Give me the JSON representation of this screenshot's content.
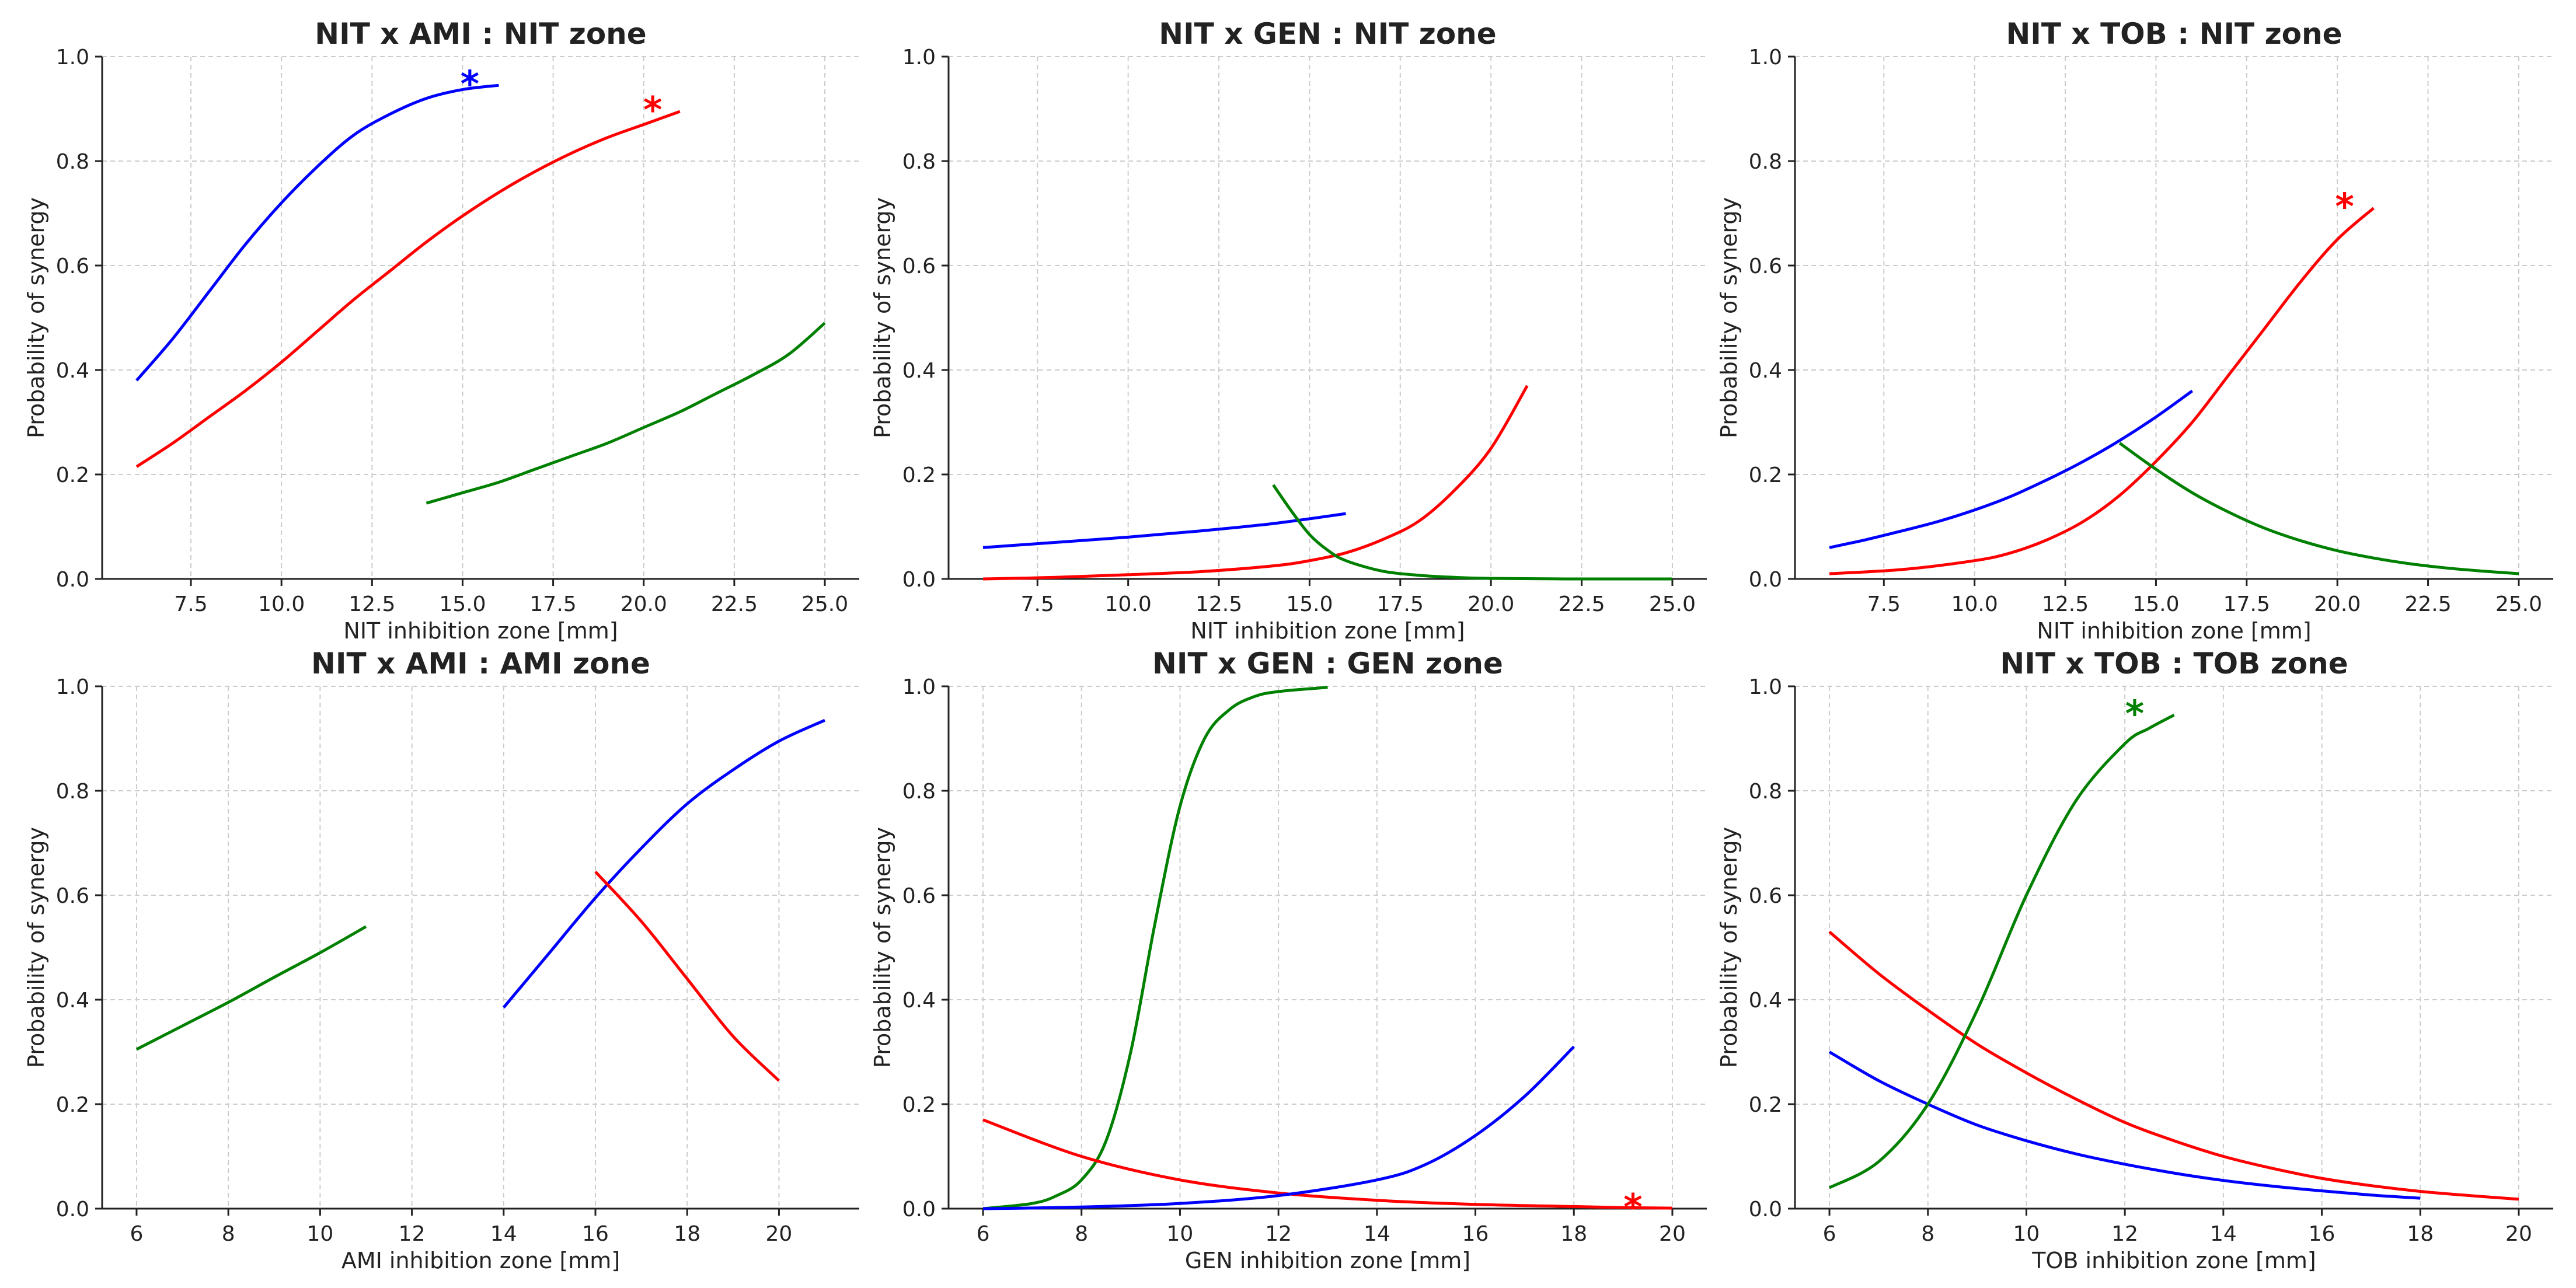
{
  "chart_data": [
    {
      "type": "line",
      "title": "NIT x AMI : NIT zone",
      "xlabel": "NIT inhibition zone [mm]",
      "ylabel": "Probability of synergy",
      "xlim": [
        5.05,
        25.95
      ],
      "ylim": [
        0.0,
        1.0
      ],
      "xticks": [
        7.5,
        10.0,
        12.5,
        15.0,
        17.5,
        20.0,
        22.5,
        25.0
      ],
      "xtick_labels": [
        "7.5",
        "10.0",
        "12.5",
        "15.0",
        "17.5",
        "20.0",
        "22.5",
        "25.0"
      ],
      "yticks": [
        0.0,
        0.2,
        0.4,
        0.6,
        0.8,
        1.0
      ],
      "ytick_labels": [
        "0.0",
        "0.2",
        "0.4",
        "0.6",
        "0.8",
        "1.0"
      ],
      "grid": true,
      "series": [
        {
          "name": "blue",
          "color": "#0000ff",
          "x": [
            6,
            7,
            8,
            9,
            10,
            11,
            12,
            13,
            14,
            15,
            16
          ],
          "y": [
            0.38,
            0.46,
            0.55,
            0.64,
            0.72,
            0.79,
            0.85,
            0.89,
            0.92,
            0.937,
            0.945
          ]
        },
        {
          "name": "red",
          "color": "#ff0000",
          "x": [
            6,
            7,
            8,
            9,
            10,
            11,
            12,
            13,
            14,
            15,
            16,
            17,
            18,
            19,
            20,
            21
          ],
          "y": [
            0.215,
            0.26,
            0.31,
            0.36,
            0.415,
            0.475,
            0.535,
            0.59,
            0.645,
            0.695,
            0.74,
            0.78,
            0.815,
            0.845,
            0.87,
            0.895
          ]
        },
        {
          "name": "green",
          "color": "#008000",
          "x": [
            14,
            15,
            16,
            17,
            18,
            19,
            20,
            21,
            22,
            23,
            24,
            25
          ],
          "y": [
            0.145,
            0.165,
            0.185,
            0.21,
            0.235,
            0.26,
            0.29,
            0.32,
            0.355,
            0.39,
            0.43,
            0.49
          ]
        }
      ],
      "annotations": [
        {
          "text": "*",
          "color": "#0000ff",
          "x": 15.2,
          "y": 0.955
        },
        {
          "text": "*",
          "color": "#ff0000",
          "x": 20.25,
          "y": 0.905
        }
      ]
    },
    {
      "type": "line",
      "title": "NIT x GEN : NIT zone",
      "xlabel": "NIT inhibition zone [mm]",
      "ylabel": "Probability of synergy",
      "xlim": [
        5.05,
        25.95
      ],
      "ylim": [
        0.0,
        1.0
      ],
      "xticks": [
        7.5,
        10.0,
        12.5,
        15.0,
        17.5,
        20.0,
        22.5,
        25.0
      ],
      "xtick_labels": [
        "7.5",
        "10.0",
        "12.5",
        "15.0",
        "17.5",
        "20.0",
        "22.5",
        "25.0"
      ],
      "yticks": [
        0.0,
        0.2,
        0.4,
        0.6,
        0.8,
        1.0
      ],
      "ytick_labels": [
        "0.0",
        "0.2",
        "0.4",
        "0.6",
        "0.8",
        "1.0"
      ],
      "grid": true,
      "series": [
        {
          "name": "blue",
          "color": "#0000ff",
          "x": [
            6,
            8,
            10,
            12,
            14,
            16
          ],
          "y": [
            0.06,
            0.07,
            0.08,
            0.092,
            0.106,
            0.125
          ]
        },
        {
          "name": "red",
          "color": "#ff0000",
          "x": [
            6,
            8,
            10,
            12,
            14,
            15,
            16,
            17,
            18,
            19,
            20,
            21
          ],
          "y": [
            0.0,
            0.003,
            0.008,
            0.014,
            0.025,
            0.035,
            0.05,
            0.075,
            0.11,
            0.17,
            0.25,
            0.37
          ]
        },
        {
          "name": "green",
          "color": "#008000",
          "x": [
            14,
            14.5,
            15,
            15.5,
            16,
            17,
            18,
            19,
            20,
            22,
            25
          ],
          "y": [
            0.18,
            0.13,
            0.085,
            0.055,
            0.035,
            0.015,
            0.007,
            0.003,
            0.001,
            0.0,
            0.0
          ]
        }
      ],
      "annotations": []
    },
    {
      "type": "line",
      "title": "NIT x TOB : NIT zone",
      "xlabel": "NIT inhibition zone [mm]",
      "ylabel": "Probability of synergy",
      "xlim": [
        5.05,
        25.95
      ],
      "ylim": [
        0.0,
        1.0
      ],
      "xticks": [
        7.5,
        10.0,
        12.5,
        15.0,
        17.5,
        20.0,
        22.5,
        25.0
      ],
      "xtick_labels": [
        "7.5",
        "10.0",
        "12.5",
        "15.0",
        "17.5",
        "20.0",
        "22.5",
        "25.0"
      ],
      "yticks": [
        0.0,
        0.2,
        0.4,
        0.6,
        0.8,
        1.0
      ],
      "ytick_labels": [
        "0.0",
        "0.2",
        "0.4",
        "0.6",
        "0.8",
        "1.0"
      ],
      "grid": true,
      "series": [
        {
          "name": "blue",
          "color": "#0000ff",
          "x": [
            6,
            7,
            8,
            9,
            10,
            11,
            12,
            13,
            14,
            15,
            16
          ],
          "y": [
            0.06,
            0.075,
            0.092,
            0.11,
            0.132,
            0.158,
            0.19,
            0.225,
            0.265,
            0.31,
            0.36
          ]
        },
        {
          "name": "red",
          "color": "#ff0000",
          "x": [
            6,
            8,
            10,
            11,
            12,
            13,
            14,
            15,
            16,
            17,
            18,
            19,
            20,
            21
          ],
          "y": [
            0.01,
            0.018,
            0.035,
            0.05,
            0.075,
            0.11,
            0.16,
            0.225,
            0.3,
            0.39,
            0.48,
            0.57,
            0.65,
            0.71
          ]
        },
        {
          "name": "green",
          "color": "#008000",
          "x": [
            14,
            15,
            16,
            17,
            18,
            19,
            20,
            21,
            22,
            23,
            24,
            25
          ],
          "y": [
            0.26,
            0.21,
            0.165,
            0.128,
            0.097,
            0.073,
            0.054,
            0.04,
            0.029,
            0.021,
            0.015,
            0.01
          ]
        }
      ],
      "annotations": [
        {
          "text": "*",
          "color": "#ff0000",
          "x": 20.2,
          "y": 0.72
        }
      ]
    },
    {
      "type": "line",
      "title": "NIT x AMI : AMI zone",
      "xlabel": "AMI inhibition zone [mm]",
      "ylabel": "Probability of synergy",
      "xlim": [
        5.25,
        21.75
      ],
      "ylim": [
        0.0,
        1.0
      ],
      "xticks": [
        6,
        8,
        10,
        12,
        14,
        16,
        18,
        20
      ],
      "xtick_labels": [
        "6",
        "8",
        "10",
        "12",
        "14",
        "16",
        "18",
        "20"
      ],
      "yticks": [
        0.0,
        0.2,
        0.4,
        0.6,
        0.8,
        1.0
      ],
      "ytick_labels": [
        "0.0",
        "0.2",
        "0.4",
        "0.6",
        "0.8",
        "1.0"
      ],
      "grid": true,
      "series": [
        {
          "name": "green",
          "color": "#008000",
          "x": [
            6,
            7,
            8,
            9,
            10,
            11
          ],
          "y": [
            0.305,
            0.35,
            0.395,
            0.443,
            0.49,
            0.54
          ]
        },
        {
          "name": "blue",
          "color": "#0000ff",
          "x": [
            14,
            15,
            16,
            17,
            18,
            19,
            20,
            21
          ],
          "y": [
            0.385,
            0.49,
            0.595,
            0.69,
            0.775,
            0.84,
            0.895,
            0.935
          ]
        },
        {
          "name": "red",
          "color": "#ff0000",
          "x": [
            16,
            17,
            18,
            19,
            20
          ],
          "y": [
            0.645,
            0.55,
            0.44,
            0.33,
            0.245
          ]
        }
      ],
      "annotations": []
    },
    {
      "type": "line",
      "title": "NIT x GEN : GEN zone",
      "xlabel": "GEN inhibition zone [mm]",
      "ylabel": "Probability of synergy",
      "xlim": [
        5.3,
        20.7
      ],
      "ylim": [
        0.0,
        1.0
      ],
      "xticks": [
        6,
        8,
        10,
        12,
        14,
        16,
        18,
        20
      ],
      "xtick_labels": [
        "6",
        "8",
        "10",
        "12",
        "14",
        "16",
        "18",
        "20"
      ],
      "yticks": [
        0.0,
        0.2,
        0.4,
        0.6,
        0.8,
        1.0
      ],
      "ytick_labels": [
        "0.0",
        "0.2",
        "0.4",
        "0.6",
        "0.8",
        "1.0"
      ],
      "grid": true,
      "series": [
        {
          "name": "green",
          "color": "#008000",
          "x": [
            6,
            7,
            7.5,
            8,
            8.5,
            9,
            9.5,
            10,
            10.5,
            11,
            11.5,
            12,
            13
          ],
          "y": [
            0.0,
            0.01,
            0.025,
            0.055,
            0.13,
            0.3,
            0.55,
            0.77,
            0.9,
            0.955,
            0.98,
            0.99,
            0.998
          ]
        },
        {
          "name": "red",
          "color": "#ff0000",
          "x": [
            6,
            8,
            10,
            12,
            14,
            16,
            18,
            19,
            20
          ],
          "y": [
            0.17,
            0.1,
            0.055,
            0.03,
            0.016,
            0.008,
            0.004,
            0.002,
            0.001
          ]
        },
        {
          "name": "blue",
          "color": "#0000ff",
          "x": [
            6,
            8,
            10,
            12,
            14,
            15,
            16,
            17,
            18
          ],
          "y": [
            0.0,
            0.003,
            0.01,
            0.025,
            0.055,
            0.085,
            0.14,
            0.215,
            0.31
          ]
        }
      ],
      "annotations": [
        {
          "text": "*",
          "color": "#ff0000",
          "x": 19.2,
          "y": 0.01
        }
      ]
    },
    {
      "type": "line",
      "title": "NIT x TOB : TOB zone",
      "xlabel": "TOB inhibition zone [mm]",
      "ylabel": "Probability of synergy",
      "xlim": [
        5.3,
        20.7
      ],
      "ylim": [
        0.0,
        1.0
      ],
      "xticks": [
        6,
        8,
        10,
        12,
        14,
        16,
        18,
        20
      ],
      "xtick_labels": [
        "6",
        "8",
        "10",
        "12",
        "14",
        "16",
        "18",
        "20"
      ],
      "yticks": [
        0.0,
        0.2,
        0.4,
        0.6,
        0.8,
        1.0
      ],
      "ytick_labels": [
        "0.0",
        "0.2",
        "0.4",
        "0.6",
        "0.8",
        "1.0"
      ],
      "grid": true,
      "series": [
        {
          "name": "red",
          "color": "#ff0000",
          "x": [
            6,
            7,
            8,
            9,
            10,
            11,
            12,
            13,
            14,
            15,
            16,
            17,
            18,
            19,
            20
          ],
          "y": [
            0.53,
            0.45,
            0.38,
            0.315,
            0.26,
            0.21,
            0.165,
            0.13,
            0.1,
            0.077,
            0.058,
            0.044,
            0.033,
            0.025,
            0.018
          ]
        },
        {
          "name": "blue",
          "color": "#0000ff",
          "x": [
            6,
            7,
            8,
            9,
            10,
            11,
            12,
            13,
            14,
            15,
            16,
            17,
            18
          ],
          "y": [
            0.3,
            0.245,
            0.2,
            0.16,
            0.13,
            0.105,
            0.085,
            0.068,
            0.054,
            0.043,
            0.034,
            0.026,
            0.02
          ]
        },
        {
          "name": "green",
          "color": "#008000",
          "x": [
            6,
            7,
            8,
            9,
            10,
            11,
            12,
            12.5,
            13
          ],
          "y": [
            0.04,
            0.09,
            0.2,
            0.38,
            0.6,
            0.78,
            0.89,
            0.92,
            0.945
          ]
        }
      ],
      "annotations": [
        {
          "text": "*",
          "color": "#008000",
          "x": 12.2,
          "y": 0.955
        }
      ]
    }
  ]
}
